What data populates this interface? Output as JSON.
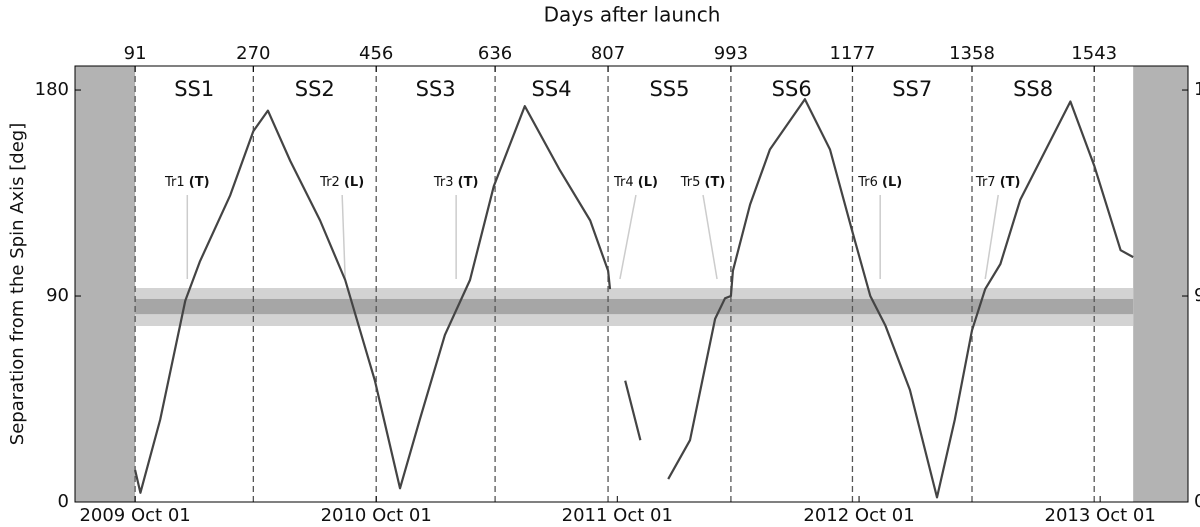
{
  "chart_data": {
    "type": "line",
    "x_title": "Days after launch",
    "y_title": "Separation from the Spin Axis [deg]",
    "xlim": [
      0,
      1685
    ],
    "ylim": [
      0,
      190.5
    ],
    "yticks": [
      0,
      90,
      180
    ],
    "xticks": [
      {
        "value": 91,
        "label": "2009 Oct 01"
      },
      {
        "value": 456,
        "label": "2010 Oct 01"
      },
      {
        "value": 821,
        "label": "2011 Oct 01"
      },
      {
        "value": 1187,
        "label": "2012 Oct 01"
      },
      {
        "value": 1552,
        "label": "2013 Oct 01"
      }
    ],
    "x2ticks": [
      91,
      270,
      456,
      636,
      807,
      993,
      1177,
      1358,
      1543
    ],
    "seasons": [
      "SS1",
      "SS2",
      "SS3",
      "SS4",
      "SS5",
      "SS6",
      "SS7",
      "SS8"
    ],
    "shaded_x": [
      [
        0,
        91
      ],
      [
        1602,
        1685
      ]
    ],
    "bands": [
      {
        "range": [
          76.9,
          93.5
        ],
        "color": "#d3d3d3"
      },
      {
        "range": [
          82.1,
          88.7
        ],
        "color": "#a6a6a6"
      }
    ],
    "color": "#444444",
    "x": [
      91,
      99,
      129,
      167,
      189,
      235,
      270,
      292,
      326,
      371,
      409,
      454,
      492,
      522,
      560,
      598,
      634,
      681,
      734,
      780,
      807,
      810,
      820,
      833,
      856,
      860,
      898,
      931,
      969,
      984,
      993,
      996,
      1022,
      1052,
      1105,
      1143,
      1176,
      1204,
      1227,
      1264,
      1305,
      1332,
      1358,
      1378,
      1401,
      1431,
      1507,
      1543,
      1583,
      1602
    ],
    "values": [
      14,
      4,
      36,
      88,
      105,
      134,
      162,
      171,
      149,
      123,
      97,
      53,
      6,
      36,
      73,
      97,
      138,
      173,
      145,
      123,
      101,
      93,
      null,
      53,
      27,
      null,
      10,
      27,
      80,
      89,
      90,
      101,
      130,
      154,
      176,
      154,
      119,
      90,
      77,
      49,
      2,
      36,
      75,
      93,
      104,
      132,
      175,
      147,
      110,
      107
    ],
    "annotations": [
      {
        "label": "Tr1",
        "mode": "(T)",
        "x": 170
      },
      {
        "label": "Tr2",
        "mode": "(L)",
        "x": 409
      },
      {
        "label": "Tr3",
        "mode": "(T)",
        "x": 577
      },
      {
        "label": "Tr4",
        "mode": "(L)",
        "x": 825
      },
      {
        "label": "Tr5",
        "mode": "(T)",
        "x": 972
      },
      {
        "label": "Tr6",
        "mode": "(L)",
        "x": 1219
      },
      {
        "label": "Tr7",
        "mode": "(T)",
        "x": 1378
      }
    ]
  }
}
